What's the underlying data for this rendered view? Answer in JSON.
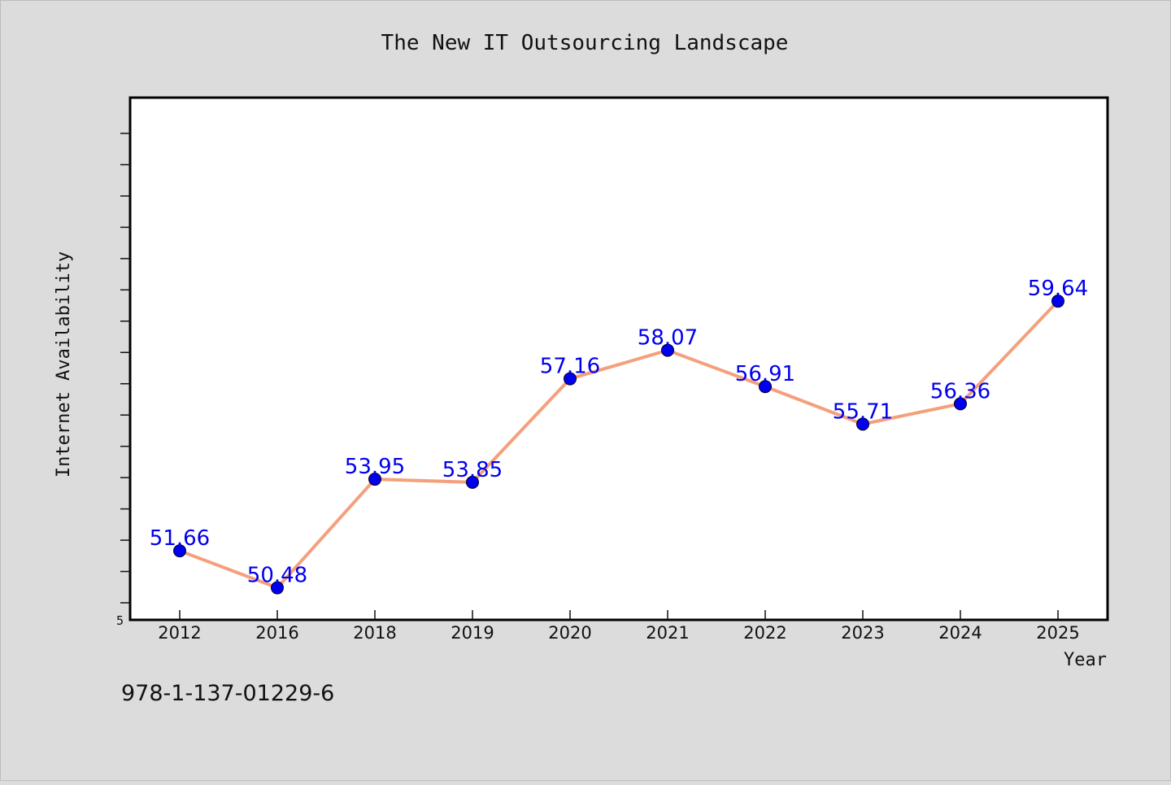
{
  "colors": {
    "background": "#dcdcdc",
    "plot_background": "#ffffff",
    "line": "#f4a07c",
    "marker": "#0000ee",
    "value_label": "#0000ee"
  },
  "footer": {
    "isbn": "978-1-137-01229-6"
  },
  "chart_data": {
    "type": "line",
    "title": "The New IT Outsourcing Landscape",
    "xlabel": "Year",
    "ylabel": "Internet Availability",
    "categories": [
      "2012",
      "2016",
      "2018",
      "2019",
      "2020",
      "2021",
      "2022",
      "2023",
      "2024",
      "2025"
    ],
    "series": [
      {
        "values": [
          51.66,
          50.48,
          53.95,
          53.85,
          57.16,
          58.07,
          56.91,
          55.71,
          56.36,
          59.64
        ],
        "labels": [
          "51.66",
          "50.48",
          "53.95",
          "53.85",
          "57.16",
          "58.07",
          "56.91",
          "55.71",
          "56.36",
          "59.64"
        ]
      }
    ],
    "ylim": [
      50,
      65
    ],
    "y_tick_labels": [
      "5"
    ],
    "grid": false,
    "legend": "none"
  }
}
